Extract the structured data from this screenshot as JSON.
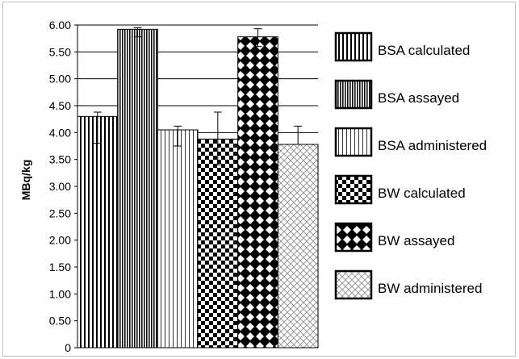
{
  "chart_data": {
    "type": "bar",
    "title": "",
    "xlabel": "",
    "ylabel": "MBq/kg",
    "ylim": [
      0,
      6
    ],
    "yticks": [
      "0",
      "0.50",
      "1.00",
      "1.50",
      "2.00",
      "2.50",
      "3.00",
      "3.50",
      "4.00",
      "4.50",
      "5.00",
      "5.50",
      "6.00"
    ],
    "grid": "horizontal",
    "legend_position": "right",
    "series": [
      {
        "name": "BSA calculated",
        "value": 4.3,
        "error_low": 3.8,
        "error_high": 4.38,
        "pattern": "vertical-wide"
      },
      {
        "name": "BSA assayed",
        "value": 5.92,
        "error_low": 5.78,
        "error_high": 5.95,
        "pattern": "vertical-dense"
      },
      {
        "name": "BSA administered",
        "value": 4.05,
        "error_low": 3.75,
        "error_high": 4.12,
        "pattern": "vertical-light"
      },
      {
        "name": "BW calculated",
        "value": 3.88,
        "error_low": 3.4,
        "error_high": 4.38,
        "pattern": "checker-small"
      },
      {
        "name": "BW assayed",
        "value": 5.78,
        "error_low": 5.6,
        "error_high": 5.93,
        "pattern": "diamond"
      },
      {
        "name": "BW administered",
        "value": 3.78,
        "error_low": 3.78,
        "error_high": 4.12,
        "pattern": "crosshatch"
      }
    ]
  }
}
